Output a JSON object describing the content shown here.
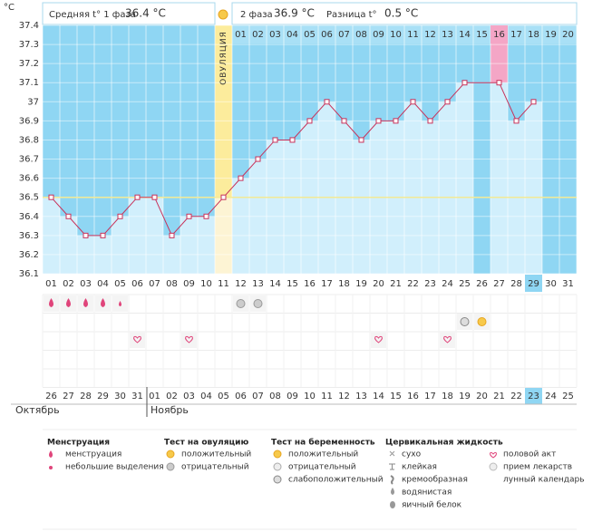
{
  "header": {
    "phase1_label": "Средняя t° 1 фаза",
    "phase1_avg": "36.4 °C",
    "phase2_label": "2 фаза",
    "phase2_avg": "36.9 °C",
    "diff_label": "Разница t°",
    "diff": "0.5 °C"
  },
  "chart_data": {
    "type": "line",
    "y_unit": "°С",
    "ylim": [
      36.1,
      37.4
    ],
    "yticks": [
      36.1,
      36.2,
      36.3,
      36.4,
      36.5,
      36.6,
      36.7,
      36.8,
      36.9,
      37,
      37.1,
      37.2,
      37.3,
      37.4
    ],
    "categories": [
      "01",
      "02",
      "03",
      "04",
      "05",
      "06",
      "07",
      "08",
      "09",
      "10",
      "11",
      "12",
      "13",
      "14",
      "15",
      "16",
      "17",
      "18",
      "19",
      "20",
      "21",
      "22",
      "23",
      "24",
      "25",
      "26",
      "27",
      "28",
      "29",
      "30",
      "31"
    ],
    "phase2_days": [
      "01",
      "02",
      "03",
      "04",
      "05",
      "06",
      "07",
      "08",
      "09",
      "10",
      "11",
      "12",
      "13",
      "14",
      "15",
      "16",
      "17",
      "18",
      "19",
      "20"
    ],
    "ovulation_label": "ОВУЛЯЦИЯ",
    "ovulation_day": "11",
    "highlight_phase2_day": "16",
    "current_day": "29",
    "cover_line": 36.5,
    "series": [
      {
        "color": "#c8325a",
        "values": [
          36.5,
          36.4,
          36.3,
          36.3,
          36.4,
          36.5,
          36.5,
          36.3,
          36.4,
          36.4,
          36.5,
          36.6,
          36.7,
          36.8,
          36.8,
          36.9,
          37,
          36.9,
          36.8,
          36.9,
          36.9,
          37,
          36.9,
          37,
          37.1,
          null,
          37.1,
          36.9,
          37,
          null,
          null
        ]
      }
    ],
    "notes": [
      {
        "day": 1,
        "row": 0,
        "kind": "drop"
      },
      {
        "day": 2,
        "row": 0,
        "kind": "drop"
      },
      {
        "day": 3,
        "row": 0,
        "kind": "drop"
      },
      {
        "day": 4,
        "row": 0,
        "kind": "drop"
      },
      {
        "day": 5,
        "row": 0,
        "kind": "small-drop"
      },
      {
        "day": 12,
        "row": 0,
        "kind": "test-negative"
      },
      {
        "day": 13,
        "row": 0,
        "kind": "test-negative"
      },
      {
        "day": 25,
        "row": 1,
        "kind": "test-weak"
      },
      {
        "day": 26,
        "row": 1,
        "kind": "test-positive"
      },
      {
        "day": 6,
        "row": 2,
        "kind": "heart"
      },
      {
        "day": 9,
        "row": 2,
        "kind": "heart"
      },
      {
        "day": 20,
        "row": 2,
        "kind": "heart"
      },
      {
        "day": 24,
        "row": 2,
        "kind": "heart"
      }
    ],
    "dates": [
      {
        "label": "26",
        "weekend": true
      },
      {
        "label": "27",
        "weekend": true
      },
      {
        "label": "28",
        "weekend": false
      },
      {
        "label": "29",
        "weekend": false
      },
      {
        "label": "30",
        "weekend": false
      },
      {
        "label": "31",
        "weekend": false
      },
      {
        "label": "01",
        "weekend": false
      },
      {
        "label": "02",
        "weekend": true
      },
      {
        "label": "03",
        "weekend": true
      },
      {
        "label": "04",
        "weekend": false
      },
      {
        "label": "05",
        "weekend": false
      },
      {
        "label": "06",
        "weekend": false
      },
      {
        "label": "07",
        "weekend": false
      },
      {
        "label": "08",
        "weekend": false
      },
      {
        "label": "09",
        "weekend": true
      },
      {
        "label": "10",
        "weekend": true
      },
      {
        "label": "11",
        "weekend": false
      },
      {
        "label": "12",
        "weekend": false
      },
      {
        "label": "13",
        "weekend": false
      },
      {
        "label": "14",
        "weekend": false
      },
      {
        "label": "15",
        "weekend": false
      },
      {
        "label": "16",
        "weekend": true
      },
      {
        "label": "17",
        "weekend": true
      },
      {
        "label": "18",
        "weekend": false
      },
      {
        "label": "19",
        "weekend": false
      },
      {
        "label": "20",
        "weekend": false
      },
      {
        "label": "21",
        "weekend": false
      },
      {
        "label": "22",
        "weekend": false
      },
      {
        "label": "23",
        "weekend": true
      },
      {
        "label": "24",
        "weekend": true
      },
      {
        "label": "25",
        "weekend": false
      }
    ],
    "months": [
      {
        "label": "Октябрь",
        "start": 0
      },
      {
        "label": "Ноябрь",
        "start": 6
      }
    ]
  },
  "legend": {
    "menstruation": {
      "title": "Менструация",
      "items": [
        "менструация",
        "небольшие выделения"
      ]
    },
    "ovulation_test": {
      "title": "Тест на овуляцию",
      "items": [
        "положительный",
        "отрицательный"
      ]
    },
    "pregnancy_test": {
      "title": "Тест на беременность",
      "items": [
        "положительный",
        "отрицательный",
        "слабоположительный"
      ]
    },
    "cervical": {
      "title": "Цервикальная жидкость",
      "items": [
        "сухо",
        "клейкая",
        "кремообразная",
        "водянистая",
        "яичный белок"
      ]
    },
    "other": {
      "items": [
        "половой акт",
        "прием лекарств",
        "лунный календарь"
      ]
    }
  }
}
